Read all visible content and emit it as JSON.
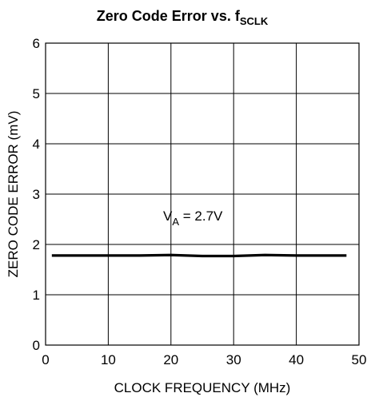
{
  "chart_data": {
    "type": "line",
    "title": {
      "main": "Zero Code Error vs. f",
      "subscript": "SCLK"
    },
    "xlabel": "CLOCK FREQUENCY (MHz)",
    "ylabel": "ZERO CODE ERROR (mV)",
    "xlim": [
      0,
      50
    ],
    "ylim": [
      0,
      6
    ],
    "x_ticks": [
      0,
      10,
      20,
      30,
      40,
      50
    ],
    "y_ticks": [
      0,
      1,
      2,
      3,
      4,
      5,
      6
    ],
    "grid": true,
    "annotation": {
      "main": "V",
      "subscript": "A",
      "suffix": " = 2.7V"
    },
    "series": [
      {
        "x": [
          1,
          5,
          10,
          15,
          20,
          25,
          30,
          35,
          40,
          45,
          48
        ],
        "y": [
          1.78,
          1.78,
          1.78,
          1.78,
          1.79,
          1.77,
          1.77,
          1.79,
          1.78,
          1.78,
          1.78
        ]
      }
    ]
  },
  "colors": {
    "line": "#000000",
    "grid": "#000000",
    "background": "#ffffff"
  }
}
